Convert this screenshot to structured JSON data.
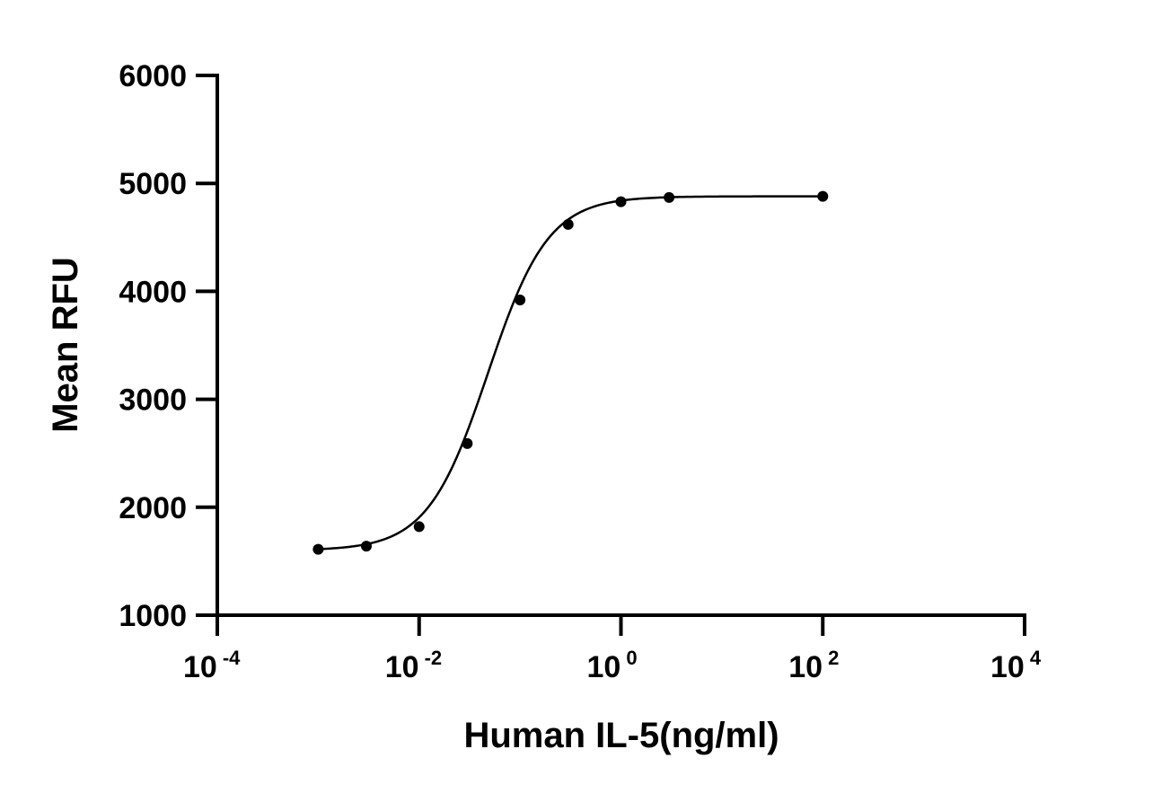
{
  "chart_data": {
    "type": "scatter",
    "title": "",
    "xlabel": "Human IL-5(ng/ml)",
    "ylabel": "Mean RFU",
    "x_scale": "log10",
    "xlim": [
      0.0001,
      10000
    ],
    "ylim": [
      1000,
      6000
    ],
    "y_ticks": [
      1000,
      2000,
      3000,
      4000,
      5000,
      6000
    ],
    "y_tick_labels": [
      "1000",
      "2000",
      "3000",
      "4000",
      "5000",
      "6000"
    ],
    "x_ticks": [
      0.0001,
      0.01,
      1,
      100,
      10000
    ],
    "x_tick_labels": [
      {
        "base": "10",
        "exp": "-4"
      },
      {
        "base": "10",
        "exp": "-2"
      },
      {
        "base": "10",
        "exp": "0"
      },
      {
        "base": "10",
        "exp": "2"
      },
      {
        "base": "10",
        "exp": "4"
      }
    ],
    "grid": false,
    "series": [
      {
        "x": [
          0.001,
          0.003,
          0.01,
          0.03,
          0.1,
          0.3,
          1,
          3,
          100
        ],
        "y": [
          1610,
          1640,
          1820,
          2590,
          3920,
          4620,
          4830,
          4870,
          4880
        ]
      }
    ],
    "fit": {
      "model": "4PL",
      "bottom": 1600,
      "top": 4880,
      "ec50": 0.048,
      "hill": 1.45,
      "x_range": [
        0.001,
        100
      ]
    },
    "colors": {
      "marks": "#000000",
      "background": "#ffffff"
    }
  }
}
